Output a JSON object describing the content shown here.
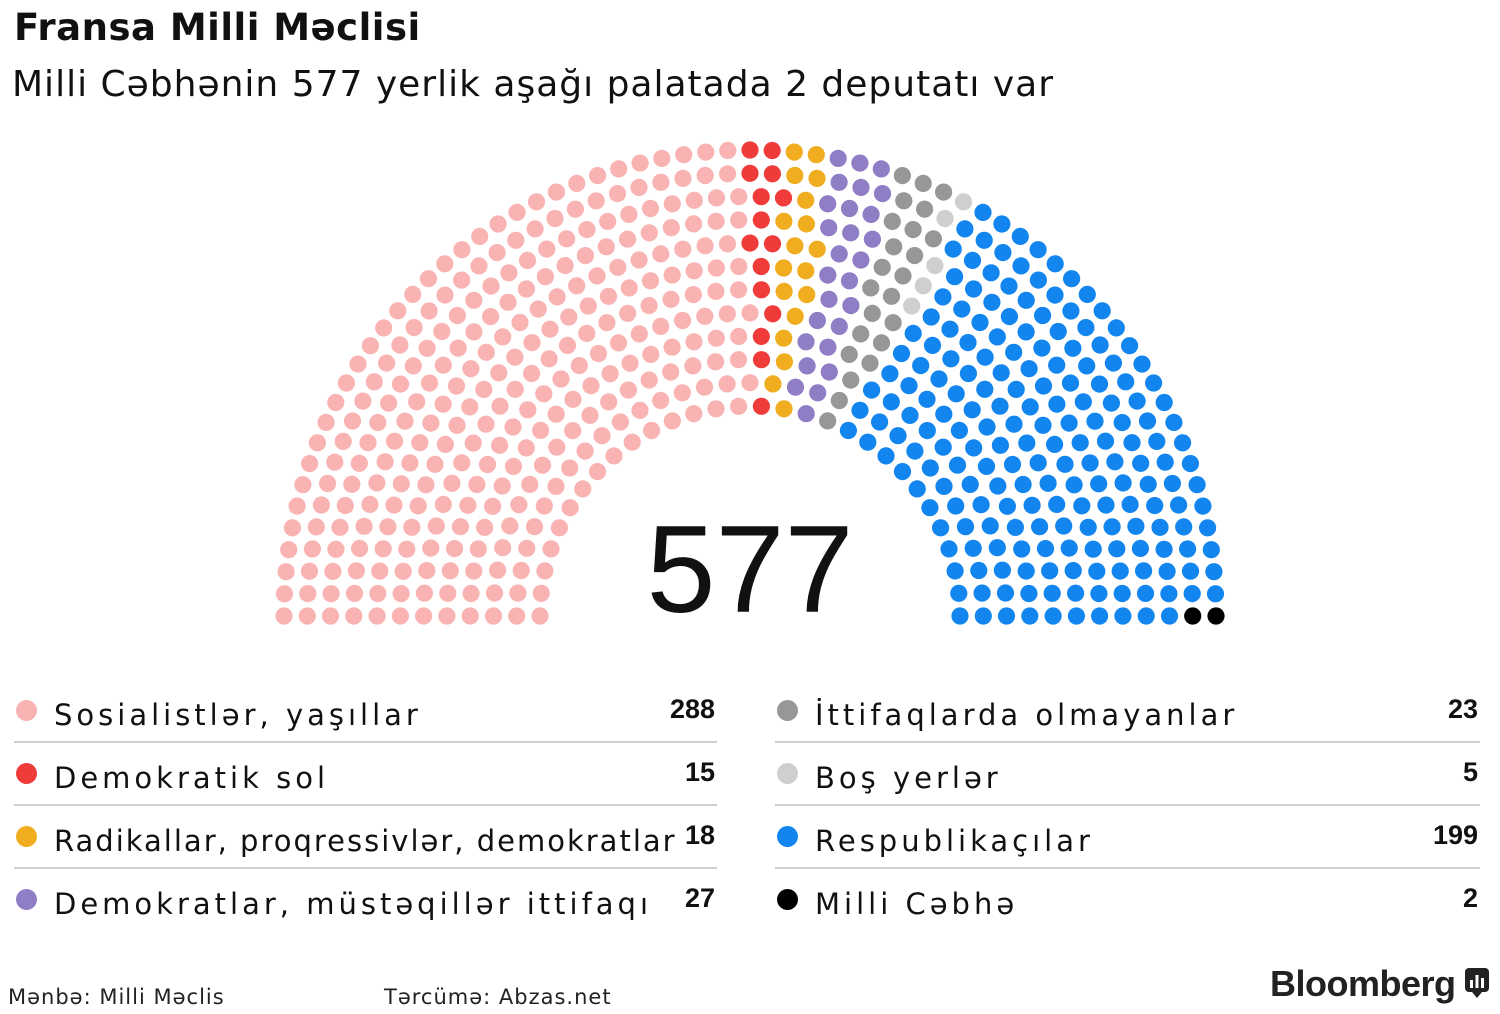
{
  "header": {
    "title": "Fransa Milli Məclisi",
    "subtitle": "Milli Cəbhənin 577 yerlik aşağı palatada 2 deputatı var"
  },
  "chart_data": {
    "type": "parliament",
    "total": 577,
    "total_label": "577",
    "rows": 12,
    "series": [
      {
        "name": "Sosialistlər, yaşıllar",
        "value": 288,
        "value_label": "288",
        "color": "#f9b3b3"
      },
      {
        "name": "Demokratik sol",
        "value": 15,
        "value_label": "15",
        "color": "#f03b3b"
      },
      {
        "name": "Radikallar, proqressivlər, demokratlar",
        "value": 18,
        "value_label": "18",
        "color": "#f0ad1f"
      },
      {
        "name": "Demokratlar, müstəqillər ittifaqı",
        "value": 27,
        "value_label": "27",
        "color": "#8f7dc6"
      },
      {
        "name": "İttifaqlarda olmayanlar",
        "value": 23,
        "value_label": "23",
        "color": "#979797"
      },
      {
        "name": "Boş yerlər",
        "value": 5,
        "value_label": "5",
        "color": "#cfcfcf"
      },
      {
        "name": "Respublikaçılar",
        "value": 199,
        "value_label": "199",
        "color": "#1385ee"
      },
      {
        "name": "Milli Cəbhə",
        "value": 2,
        "value_label": "2",
        "color": "#000000"
      }
    ],
    "legend_columns": [
      [
        0,
        1,
        2,
        3
      ],
      [
        4,
        5,
        6,
        7
      ]
    ]
  },
  "footer": {
    "source": "Mənbə: Milli Məclis",
    "translation": "Tərcümə: Abzas.net",
    "brand": "Bloomberg",
    "brand_icon": "bloomberg-terminal-icon"
  }
}
